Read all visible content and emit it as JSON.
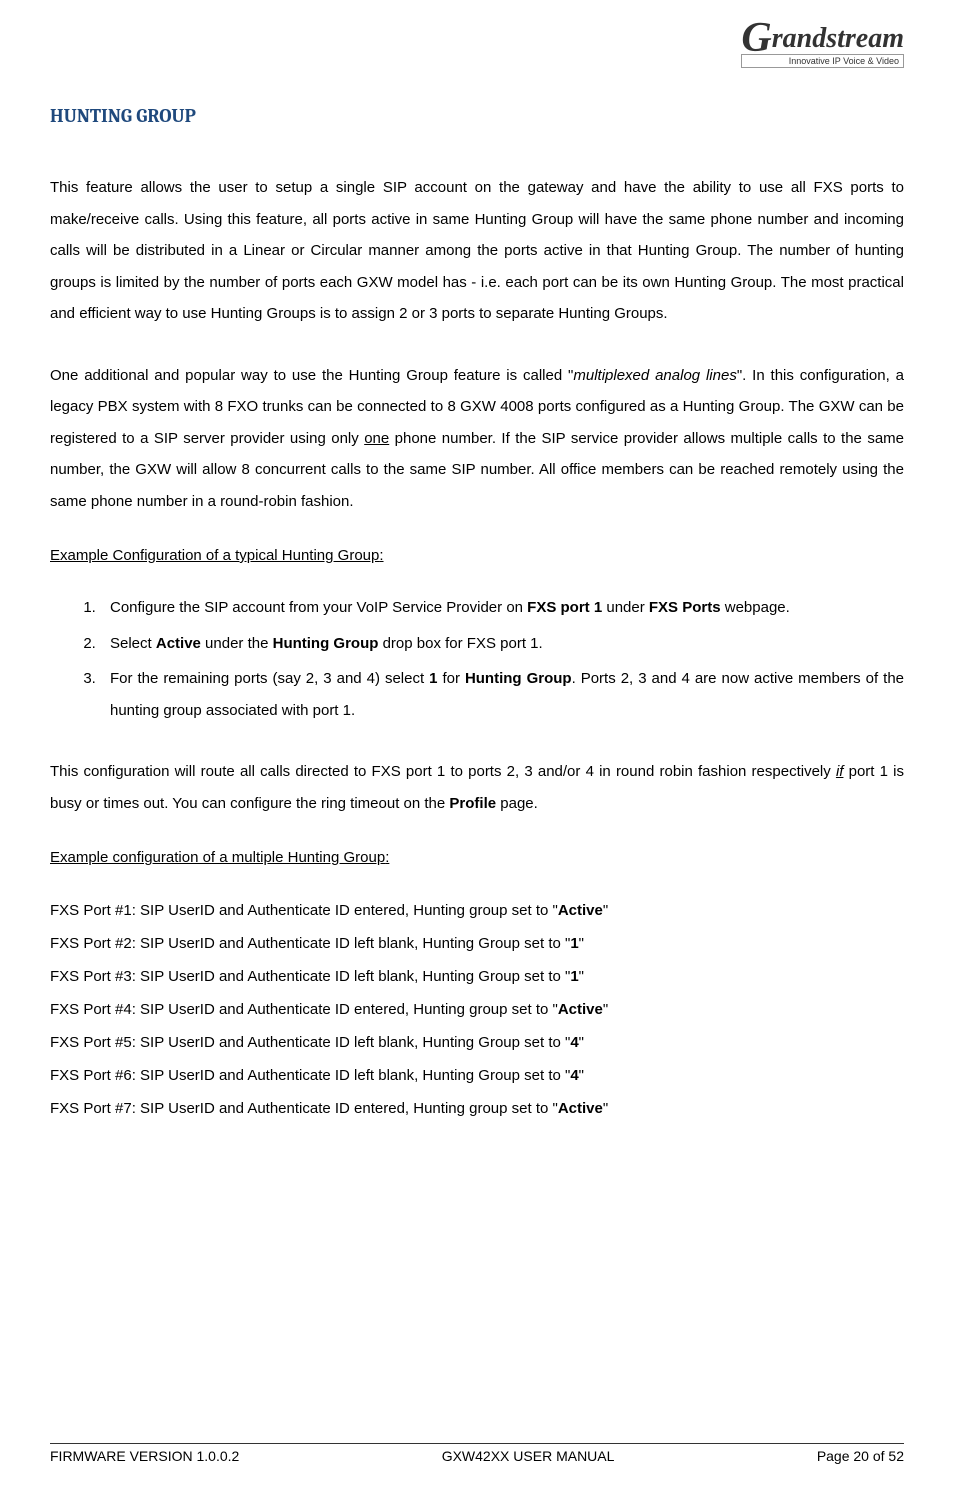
{
  "logo": {
    "brand_g": "G",
    "brand_rest": "randstream",
    "tagline": "Innovative IP Voice & Video"
  },
  "section_title": "HUNTING GROUP",
  "para1_text": "This feature allows the user to setup a single SIP account on the gateway and have the ability to use all FXS ports to make/receive calls. Using this feature, all ports active in same Hunting Group will have the same phone number and incoming calls will be distributed in a Linear or Circular manner among the ports active in that Hunting Group.  The number of hunting groups is limited by the number of ports each GXW model has - i.e. each port can be its own Hunting Group.  The most practical and efficient way to use Hunting Groups is to assign 2 or 3 ports to separate Hunting Groups.",
  "para2": {
    "p1": "One additional and popular way to use the Hunting Group feature is called \"",
    "italic": "multiplexed analog lines",
    "p2": "\". In this configuration, a legacy PBX system with 8 FXO trunks can be connected to 8 GXW 4008 ports configured as a Hunting Group. The GXW can be registered to a SIP server provider using only ",
    "underline": "one",
    "p3": " phone number. If the SIP service provider allows multiple calls to the same number, the GXW will allow 8 concurrent calls to the same SIP number. All office members can be reached remotely using the same phone number in a round-robin fashion."
  },
  "example1_heading": "Example Configuration of a typical Hunting Group",
  "colon": ":",
  "steps": {
    "s1": {
      "a": "Configure the SIP account from your VoIP Service Provider on ",
      "b1": "FXS port 1",
      "c": " under ",
      "b2": "FXS Ports",
      "d": " webpage."
    },
    "s2": {
      "a": "Select ",
      "b1": "Active",
      "c": " under the ",
      "b2": "Hunting Group",
      "d": " drop box for FXS port 1."
    },
    "s3": {
      "a": "For the remaining ports (say 2, 3 and 4) select ",
      "b1": "1",
      "c": " for ",
      "b2": "Hunting Group",
      "d": ". Ports 2, 3 and 4 are now active members of the hunting group associated with port 1."
    }
  },
  "para3": {
    "a": "This configuration will route all calls directed to FXS port 1 to ports 2, 3 and/or 4 in round robin fashion respectively ",
    "if": "if",
    "b": " port 1 is busy or times out. You can configure the ring timeout on the ",
    "profile": "Profile",
    "c": " page."
  },
  "example2_heading": "Example configuration of a multiple Hunting Group",
  "ports": [
    {
      "label": "FXS Port #1:",
      "desc": "  SIP UserID and Authenticate ID entered, Hunting group set to \"",
      "val": "Active",
      "end": "\""
    },
    {
      "label": "FXS Port #2:",
      "desc": "  SIP UserID and Authenticate ID left blank, Hunting Group set to \"",
      "val": "1",
      "end": "\""
    },
    {
      "label": "FXS Port #3:",
      "desc": "  SIP UserID and Authenticate ID left blank, Hunting Group set to \"",
      "val": "1",
      "end": "\""
    },
    {
      "label": "FXS Port #4:",
      "desc": "  SIP UserID and Authenticate ID entered, Hunting group set to \"",
      "val": "Active",
      "end": "\""
    },
    {
      "label": "FXS Port #5:",
      "desc": "  SIP UserID and Authenticate ID left blank, Hunting Group set to \"",
      "val": "4",
      "end": "\""
    },
    {
      "label": "FXS Port #6:",
      "desc": "  SIP UserID and Authenticate ID left blank, Hunting Group set to \"",
      "val": "4",
      "end": "\""
    },
    {
      "label": "FXS Port #7:",
      "desc": "  SIP UserID and Authenticate ID entered, Hunting group set to \"",
      "val": "Active",
      "end": "\""
    }
  ],
  "footer": {
    "left": "FIRMWARE VERSION 1.0.0.2",
    "center": "GXW42XX USER MANUAL",
    "right": "Page 20 of 52"
  },
  "colors": {
    "heading_color": "#1f497d",
    "text_color": "#000000",
    "background": "#ffffff"
  },
  "typography": {
    "body_fontsize": 15,
    "heading_fontsize": 19,
    "footer_fontsize": 14,
    "line_height": 2.1
  }
}
